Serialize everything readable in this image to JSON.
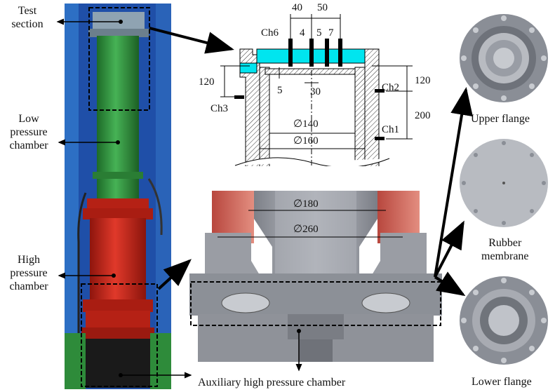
{
  "labels": {
    "test_section": [
      "Test",
      "section"
    ],
    "low_pressure": [
      "Low",
      "pressure",
      "chamber"
    ],
    "high_pressure": [
      "High",
      "pressure",
      "chamber"
    ],
    "auxiliary": "Auxiliary high pressure chamber",
    "upper_flange": "Upper flange",
    "rubber_membrane": [
      "Rubber",
      "membrane"
    ],
    "lower_flange": "Lower flange"
  },
  "test_section_drawing": {
    "top_dims": [
      "40",
      "50"
    ],
    "channel_numbers": [
      "4",
      "5",
      "7"
    ],
    "ch6": "Ch6",
    "ch2": "Ch2",
    "ch3": "Ch3",
    "ch1": "Ch1",
    "left_120": "120",
    "right_120": "120",
    "right_200": "200",
    "dim_5": "5",
    "dim_30": "30",
    "dia_140": "∅140",
    "dia_160": "∅160"
  },
  "chamber_section": {
    "dia_180": "∅180",
    "dia_260": "∅260"
  },
  "colors": {
    "green_tube": "#2e8b3a",
    "red_chamber": "#c9281b",
    "blue_backdrop": "#1f4fa8",
    "cyan_part": "#00e5ef",
    "flange_gray": "#8a8e96"
  }
}
